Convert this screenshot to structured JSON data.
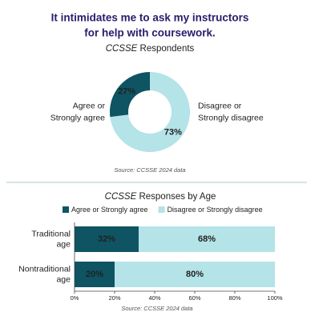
{
  "title": "It intimidates me to ask my instructors for help with coursework.",
  "chart_data": [
    {
      "type": "pie",
      "donut": true,
      "title": "CCSSE Respondents",
      "categories": [
        "Agree or Strongly agree",
        "Disagree or Strongly disagree"
      ],
      "values": [
        27,
        73
      ],
      "value_labels": [
        "27%",
        "73%"
      ],
      "colors": [
        "#0e5462",
        "#b4e3e8"
      ],
      "source": "Source: CCSSE 2024 data"
    },
    {
      "type": "bar",
      "orientation": "horizontal",
      "stacked": true,
      "title": "CCSSE Responses by Age",
      "categories": [
        "Traditional age",
        "Nontraditional age"
      ],
      "series": [
        {
          "name": "Agree or Strongly agree",
          "color": "#0e5462",
          "values": [
            32,
            20
          ],
          "value_labels": [
            "32%",
            "20%"
          ]
        },
        {
          "name": "Disagree or Strongly disagree",
          "color": "#b4e3e8",
          "values": [
            68,
            80
          ],
          "value_labels": [
            "68%",
            "80%"
          ]
        }
      ],
      "xlim": [
        0,
        100
      ],
      "xticks": [
        {
          "value": 0,
          "label": "0%"
        },
        {
          "value": 20,
          "label": "20%"
        },
        {
          "value": 40,
          "label": "40%"
        },
        {
          "value": 60,
          "label": "60%"
        },
        {
          "value": 80,
          "label": "80%"
        },
        {
          "value": 100,
          "label": "100%"
        }
      ],
      "source": "Source: CCSSE 2024 data"
    }
  ]
}
